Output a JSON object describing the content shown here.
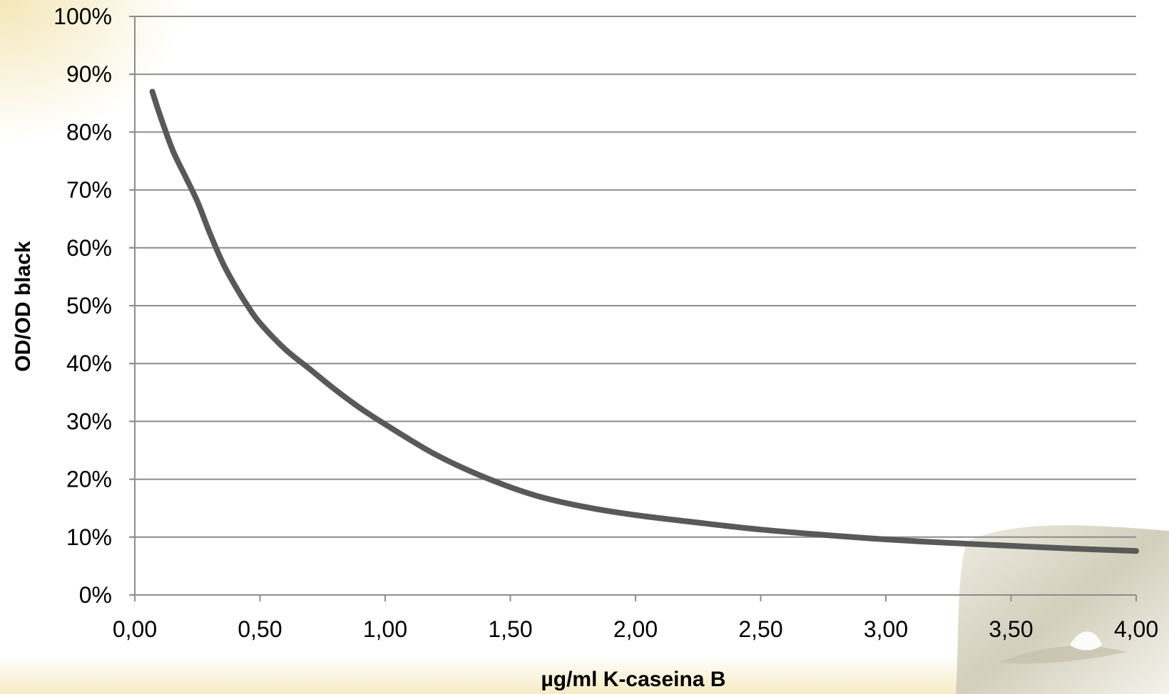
{
  "chart_data": {
    "type": "line",
    "title": "",
    "xlabel": "µg/ml K-caseina B",
    "ylabel": "OD/OD black",
    "xlim": [
      0,
      4
    ],
    "ylim": [
      0,
      100
    ],
    "x_ticks": [
      "0,00",
      "0,50",
      "1,00",
      "1,50",
      "2,00",
      "2,50",
      "3,00",
      "3,50",
      "4,00"
    ],
    "y_ticks": [
      "0%",
      "10%",
      "20%",
      "30%",
      "40%",
      "50%",
      "60%",
      "70%",
      "80%",
      "90%",
      "100%"
    ],
    "grid": "horizontal",
    "legend": "none",
    "series": [
      {
        "x": [
          0.07,
          0.1,
          0.15,
          0.2,
          0.25,
          0.3,
          0.35,
          0.4,
          0.45,
          0.5,
          0.6,
          0.7,
          0.8,
          0.9,
          1.0,
          1.2,
          1.4,
          1.6,
          1.8,
          2.0,
          2.25,
          2.5,
          2.75,
          3.0,
          3.25,
          3.5,
          3.75,
          4.0
        ],
        "y": [
          87,
          83,
          77,
          72.5,
          68,
          62.5,
          57.5,
          53.5,
          50,
          47,
          42.5,
          39,
          35.5,
          32.3,
          29.5,
          24.3,
          20.3,
          17.2,
          15.2,
          13.8,
          12.5,
          11.3,
          10.4,
          9.6,
          9,
          8.5,
          8,
          7.6
        ],
        "color": "#595959"
      }
    ]
  },
  "colors": {
    "line": "#595959",
    "grid": "#8c8c8c",
    "axis": "#8c8c8c",
    "background_tint": "#f3e4b0",
    "decor_splash": "#d9d6c4"
  }
}
